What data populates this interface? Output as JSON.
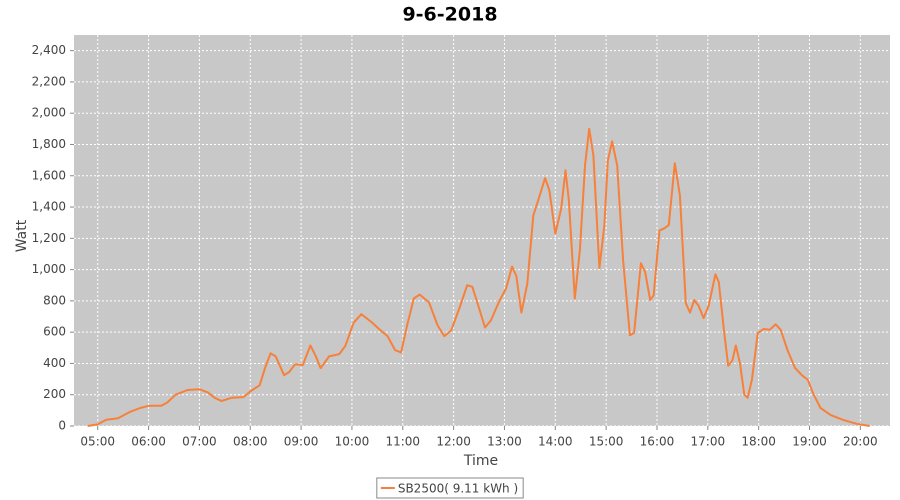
{
  "chart_data": {
    "type": "line",
    "title": "9-6-2018",
    "x_label": "Time",
    "y_label": "Watt",
    "x": [
      "04:48",
      "05:00",
      "05:10",
      "05:24",
      "05:38",
      "05:50",
      "06:01",
      "06:15",
      "06:22",
      "06:32",
      "06:46",
      "07:00",
      "07:10",
      "07:18",
      "07:26",
      "07:38",
      "07:52",
      "08:01",
      "08:11",
      "08:18",
      "08:24",
      "08:30",
      "08:40",
      "08:46",
      "08:53",
      "09:02",
      "09:11",
      "09:17",
      "09:23",
      "09:33",
      "09:45",
      "09:52",
      "10:02",
      "10:11",
      "10:23",
      "10:32",
      "10:42",
      "10:51",
      "10:58",
      "11:05",
      "11:13",
      "11:20",
      "11:31",
      "11:41",
      "11:49",
      "11:57",
      "12:07",
      "12:16",
      "12:22",
      "12:30",
      "12:37",
      "12:44",
      "12:54",
      "13:02",
      "13:09",
      "13:14",
      "13:20",
      "13:27",
      "13:34",
      "13:42",
      "13:48",
      "13:53",
      "14:00",
      "14:07",
      "14:12",
      "14:16",
      "14:23",
      "14:29",
      "14:35",
      "14:40",
      "14:45",
      "14:52",
      "14:58",
      "15:02",
      "15:07",
      "15:13",
      "15:20",
      "15:28",
      "15:33",
      "15:41",
      "15:46",
      "15:52",
      "15:56",
      "16:03",
      "16:09",
      "16:14",
      "16:21",
      "16:27",
      "16:34",
      "16:39",
      "16:44",
      "16:49",
      "16:55",
      "17:01",
      "17:09",
      "17:13",
      "17:19",
      "17:24",
      "17:29",
      "17:33",
      "17:38",
      "17:43",
      "17:47",
      "17:52",
      "17:59",
      "18:06",
      "18:13",
      "18:20",
      "18:26",
      "18:34",
      "18:43",
      "18:51",
      "18:58",
      "19:05",
      "19:13",
      "19:25",
      "19:39",
      "19:55",
      "20:11"
    ],
    "series": [
      {
        "name": "SB2500( 9.11 kWh )",
        "color": "#f7803a",
        "values": [
          0,
          10,
          40,
          50,
          90,
          115,
          130,
          130,
          150,
          200,
          230,
          235,
          215,
          180,
          160,
          180,
          185,
          225,
          260,
          380,
          465,
          445,
          325,
          345,
          395,
          390,
          515,
          450,
          370,
          445,
          460,
          510,
          660,
          715,
          665,
          620,
          575,
          485,
          470,
          640,
          815,
          840,
          790,
          645,
          575,
          610,
          755,
          900,
          890,
          755,
          630,
          675,
          800,
          880,
          1020,
          960,
          725,
          910,
          1345,
          1480,
          1585,
          1505,
          1230,
          1390,
          1635,
          1440,
          815,
          1125,
          1665,
          1900,
          1730,
          1010,
          1285,
          1695,
          1820,
          1665,
          1060,
          580,
          595,
          1040,
          985,
          805,
          835,
          1250,
          1265,
          1285,
          1680,
          1475,
          785,
          725,
          805,
          770,
          690,
          770,
          970,
          920,
          615,
          385,
          420,
          515,
          400,
          200,
          180,
          295,
          595,
          620,
          615,
          650,
          615,
          485,
          370,
          325,
          295,
          200,
          115,
          70,
          40,
          15,
          0
        ]
      }
    ],
    "xlim": [
      "04:32",
      "20:35"
    ],
    "xticks": [
      "05:00",
      "06:00",
      "07:00",
      "08:00",
      "09:00",
      "10:00",
      "11:00",
      "12:00",
      "13:00",
      "14:00",
      "15:00",
      "16:00",
      "17:00",
      "18:00",
      "19:00",
      "20:00"
    ],
    "ylim": [
      0,
      2500
    ],
    "yticks": [
      0,
      200,
      400,
      600,
      800,
      {
        "value": 1000,
        "label": "1,000"
      },
      {
        "value": 1200,
        "label": "1,200"
      },
      {
        "value": 1400,
        "label": "1,400"
      },
      {
        "value": 1600,
        "label": "1,600"
      },
      {
        "value": 1800,
        "label": "1,800"
      },
      {
        "value": 2000,
        "label": "2,000"
      },
      {
        "value": 2200,
        "label": "2,200"
      },
      {
        "value": 2400,
        "label": "2,400"
      }
    ],
    "grid": true,
    "legend": "bottom"
  }
}
